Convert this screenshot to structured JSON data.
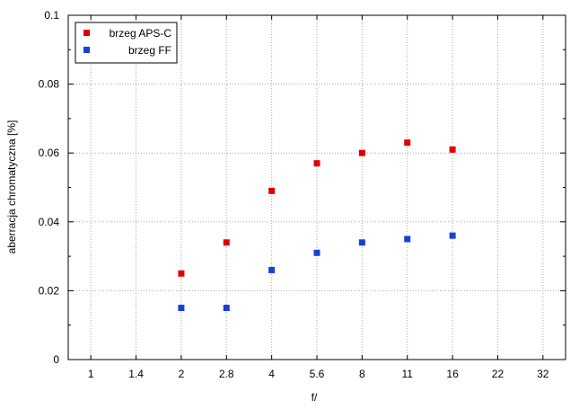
{
  "chart_data": {
    "type": "scatter",
    "title": "",
    "xlabel": "f/",
    "ylabel": "aberracja chromatyczna [%]",
    "x_categories": [
      "1",
      "1.4",
      "2",
      "2.8",
      "4",
      "5.6",
      "8",
      "11",
      "16",
      "22",
      "32"
    ],
    "ylim": [
      0,
      0.1
    ],
    "y_ticks": [
      "0",
      "0.02",
      "0.04",
      "0.06",
      "0.08",
      "0.1"
    ],
    "grid": true,
    "legend_position": "top-left",
    "series": [
      {
        "name": "brzeg APS-C",
        "color": "#e00000",
        "x": [
          "2",
          "2.8",
          "4",
          "5.6",
          "8",
          "11",
          "16"
        ],
        "y": [
          0.025,
          0.034,
          0.049,
          0.057,
          0.06,
          0.063,
          0.061
        ]
      },
      {
        "name": "brzeg FF",
        "color": "#1a3fd6",
        "x": [
          "2",
          "2.8",
          "4",
          "5.6",
          "8",
          "11",
          "16"
        ],
        "y": [
          0.015,
          0.015,
          0.026,
          0.031,
          0.034,
          0.035,
          0.036
        ]
      }
    ]
  }
}
